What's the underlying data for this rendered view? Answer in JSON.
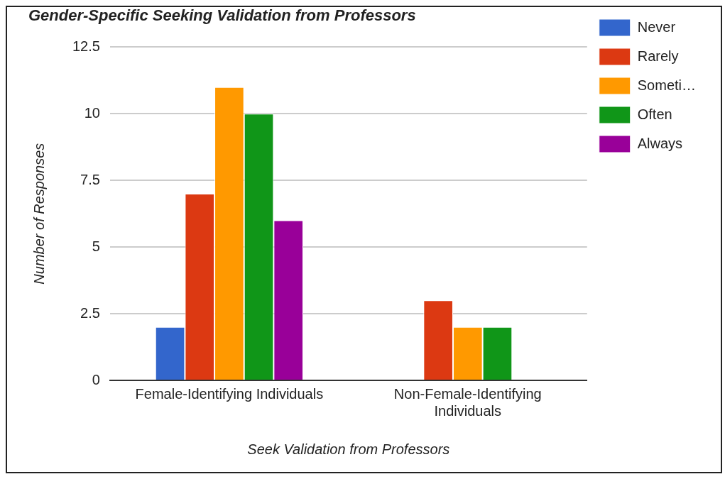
{
  "chart_data": {
    "type": "bar",
    "title": "Gender-Specific Seeking Validation from Professors",
    "xlabel": "Seek Validation from Professors",
    "ylabel": "Number of Responses",
    "categories": [
      "Female-Identifying Individuals",
      "Non-Female-Identifying Individuals"
    ],
    "series": [
      {
        "name": "Never",
        "color": "#3366cc",
        "values": [
          2,
          0
        ]
      },
      {
        "name": "Rarely",
        "color": "#dc3912",
        "values": [
          7,
          3
        ]
      },
      {
        "name": "Someti…",
        "color": "#ff9900",
        "values": [
          11,
          2
        ]
      },
      {
        "name": "Often",
        "color": "#109618",
        "values": [
          10,
          2
        ]
      },
      {
        "name": "Always",
        "color": "#990099",
        "values": [
          6,
          0
        ]
      }
    ],
    "ylim": [
      0,
      12.5
    ],
    "yticks": [
      0,
      2.5,
      5,
      7.5,
      10,
      12.5
    ],
    "grid": "y",
    "legend": "right"
  }
}
